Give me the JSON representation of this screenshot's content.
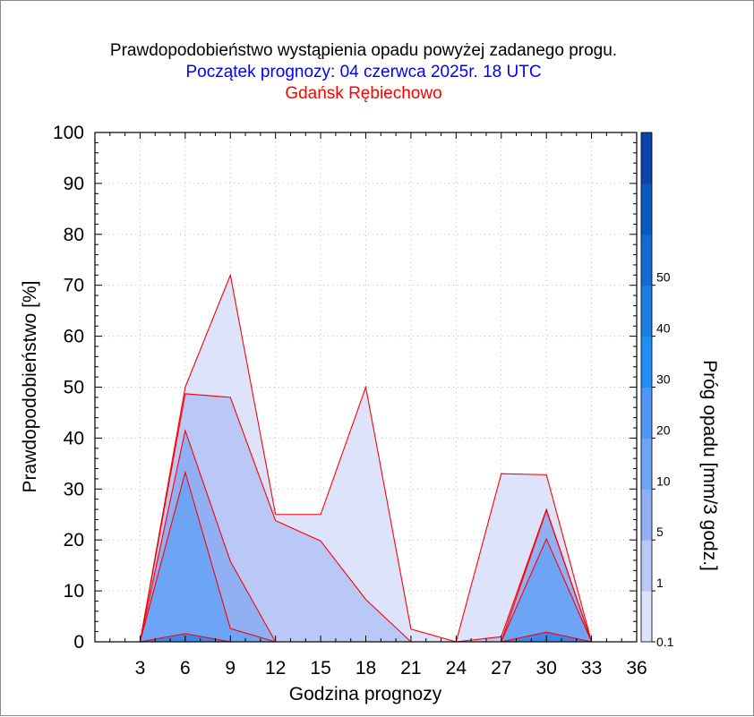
{
  "chart_data": {
    "type": "area",
    "title": "Prawdopodobieństwo wystąpienia opadu powyżej zadanego progu.",
    "subtitle": "Początek prognozy: 04 czerwca 2025r. 18 UTC",
    "location": "Gdańsk Rębiechowo",
    "xlabel": "Godzina prognozy",
    "ylabel": "Prawdopodobieństwo [%]",
    "colorbar_label": "Próg opadu [mm/3 godz.]",
    "xlim": [
      0,
      36
    ],
    "ylim": [
      0,
      100
    ],
    "x_ticks": [
      "3",
      "6",
      "9",
      "12",
      "15",
      "18",
      "21",
      "24",
      "27",
      "30",
      "33",
      "36"
    ],
    "y_ticks": [
      "0",
      "10",
      "20",
      "30",
      "40",
      "50",
      "60",
      "70",
      "80",
      "90",
      "100"
    ],
    "colorbar_ticks": [
      "0.1",
      "1",
      "5",
      "10",
      "20",
      "30",
      "40",
      "50"
    ],
    "x": [
      3,
      6,
      9,
      12,
      15,
      18,
      21,
      24,
      27,
      30,
      33
    ],
    "series": [
      {
        "name": "0.1",
        "color": "#dde3fb",
        "values": [
          0,
          50,
          72,
          25,
          25,
          50,
          2.5,
          0,
          33,
          32.8,
          0
        ]
      },
      {
        "name": "1",
        "color": "#b9c8f7",
        "values": [
          0,
          48.7,
          48,
          23.8,
          19.8,
          8.3,
          0,
          0,
          1,
          26,
          0
        ]
      },
      {
        "name": "5",
        "color": "#91b0f3",
        "values": [
          0,
          41.5,
          15.8,
          0,
          0,
          0,
          0,
          0,
          0,
          25.8,
          0
        ]
      },
      {
        "name": "10",
        "color": "#6ea4f6",
        "values": [
          0,
          33.3,
          2.6,
          0,
          0,
          0,
          0,
          0,
          0,
          20.2,
          0
        ]
      },
      {
        "name": "20",
        "color": "#3f86e6",
        "values": [
          0,
          1.6,
          0,
          0,
          0,
          0,
          0,
          0,
          0,
          1.9,
          0
        ]
      }
    ],
    "colorbar_colors": [
      "#dde3fb",
      "#b9c8f7",
      "#91b0f3",
      "#6ea4f6",
      "#4f96f2",
      "#1f8ff5",
      "#1a7ee0",
      "#116bd0",
      "#0a58c0",
      "#0a44a8"
    ],
    "outline_color": "#ff0000"
  }
}
